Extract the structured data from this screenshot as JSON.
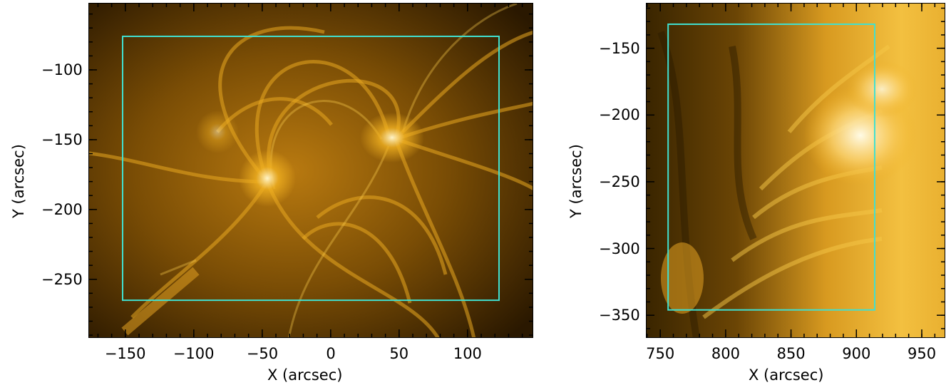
{
  "panels": [
    {
      "xlabel": "X (arcsec)",
      "ylabel": "Y (arcsec)",
      "xlim": [
        -177,
        148
      ],
      "ylim": [
        -292,
        -52
      ],
      "xticks": [
        -150,
        -100,
        -50,
        0,
        50,
        100
      ],
      "yticks": [
        -100,
        -150,
        -200,
        -250
      ],
      "xtick_labels": [
        "−150",
        "−100",
        "−50",
        "0",
        "50",
        "100"
      ],
      "ytick_labels": [
        "−100",
        "−150",
        "−200",
        "−250"
      ],
      "box": {
        "x0": -152,
        "x1": 123,
        "y0": -265,
        "y1": -76,
        "color": "#40e0d0"
      },
      "image_theme": "solar-corona-active-region-gold"
    },
    {
      "xlabel": "X (arcsec)",
      "ylabel": "Y (arcsec)",
      "xlim": [
        739,
        968
      ],
      "ylim": [
        -367,
        -116
      ],
      "xticks": [
        750,
        800,
        850,
        900,
        950
      ],
      "yticks": [
        -150,
        -200,
        -250,
        -300,
        -350
      ],
      "xtick_labels": [
        "750",
        "800",
        "850",
        "900",
        "950"
      ],
      "ytick_labels": [
        "−150",
        "−200",
        "−250",
        "−300",
        "−350"
      ],
      "box": {
        "x0": 756,
        "x1": 914,
        "y0": -346,
        "y1": -132,
        "color": "#40e0d0"
      },
      "image_theme": "solar-corona-limb-gold"
    }
  ]
}
